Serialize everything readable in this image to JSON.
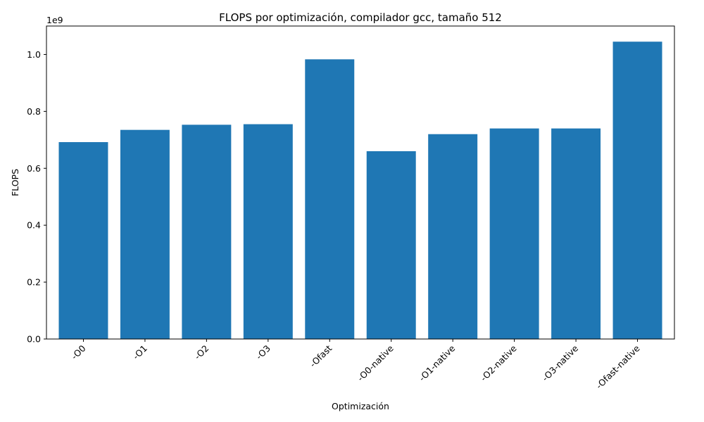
{
  "chart_data": {
    "type": "bar",
    "title": "FLOPS por optimización, compilador gcc, tamaño 512",
    "xlabel": "Optimización",
    "ylabel": "FLOPS",
    "y_offset_label": "1e9",
    "categories": [
      "-O0",
      "-O1",
      "-O2",
      "-O3",
      "-Ofast",
      "-O0-native",
      "-O1-native",
      "-O2-native",
      "-O3-native",
      "-Ofast-native"
    ],
    "values": [
      692000000,
      735000000,
      753000000,
      755000000,
      983000000,
      660000000,
      720000000,
      740000000,
      740000000,
      1045000000
    ],
    "ylim": [
      0,
      1100000000
    ],
    "yticks": [
      0,
      200000000,
      400000000,
      600000000,
      800000000,
      1000000000
    ],
    "ytick_labels": [
      "0.0",
      "0.2",
      "0.4",
      "0.6",
      "0.8",
      "1.0"
    ],
    "grid": false,
    "bar_color": "#1f77b4"
  }
}
